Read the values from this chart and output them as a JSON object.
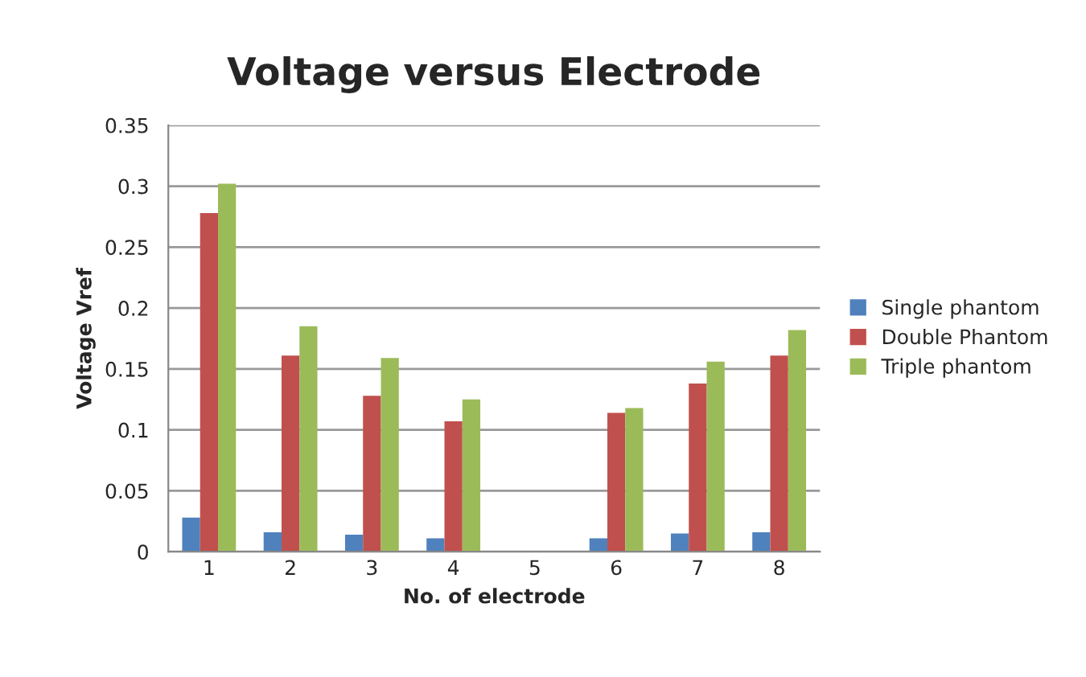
{
  "chart_data": {
    "type": "bar",
    "title": "Voltage versus Electrode",
    "xlabel": "No. of electrode",
    "ylabel": "Voltage Vref",
    "categories": [
      "1",
      "2",
      "3",
      "4",
      "5",
      "6",
      "7",
      "8"
    ],
    "series": [
      {
        "name": "Single phantom",
        "color": "#4f81bd",
        "values": [
          0.028,
          0.016,
          0.014,
          0.011,
          null,
          0.011,
          0.015,
          0.016
        ]
      },
      {
        "name": "Double Phantom",
        "color": "#c0504d",
        "values": [
          0.278,
          0.161,
          0.128,
          0.107,
          null,
          0.114,
          0.138,
          0.161
        ]
      },
      {
        "name": "Triple phantom",
        "color": "#9bbb59",
        "values": [
          0.302,
          0.185,
          0.159,
          0.125,
          null,
          0.118,
          0.156,
          0.182
        ]
      }
    ],
    "ylim": [
      0,
      0.35
    ],
    "yticks": [
      0,
      0.05,
      0.1,
      0.15,
      0.2,
      0.25,
      0.3,
      0.35
    ],
    "grid": "y",
    "legend": "right"
  }
}
